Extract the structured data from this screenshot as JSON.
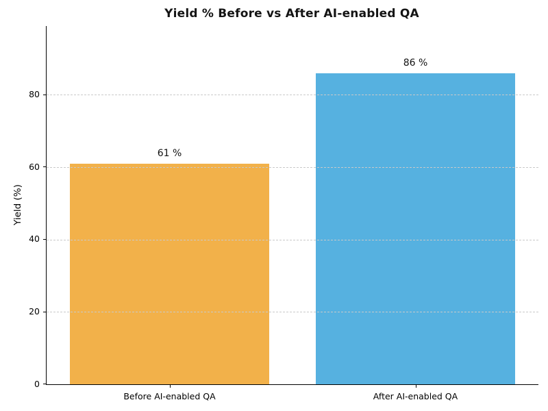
{
  "chart_data": {
    "type": "bar",
    "title": "Yield % Before vs After AI-enabled QA",
    "categories": [
      "Before AI-enabled QA",
      "After AI-enabled QA"
    ],
    "values": [
      61,
      86
    ],
    "bar_labels": [
      "61 %",
      "86 %"
    ],
    "bar_colors": [
      "#f2b14a",
      "#56b1e0"
    ],
    "xlabel": "",
    "ylabel": "Yield (%)",
    "ylim": [
      0,
      99
    ],
    "yticks": [
      0,
      20,
      40,
      60,
      80
    ],
    "grid": "horizontal-dashed",
    "gridline_color": "#c9c9c9",
    "legend": "none",
    "background_color": "#ffffff",
    "title_color": "#141414",
    "bar_width_fraction": 0.81
  }
}
